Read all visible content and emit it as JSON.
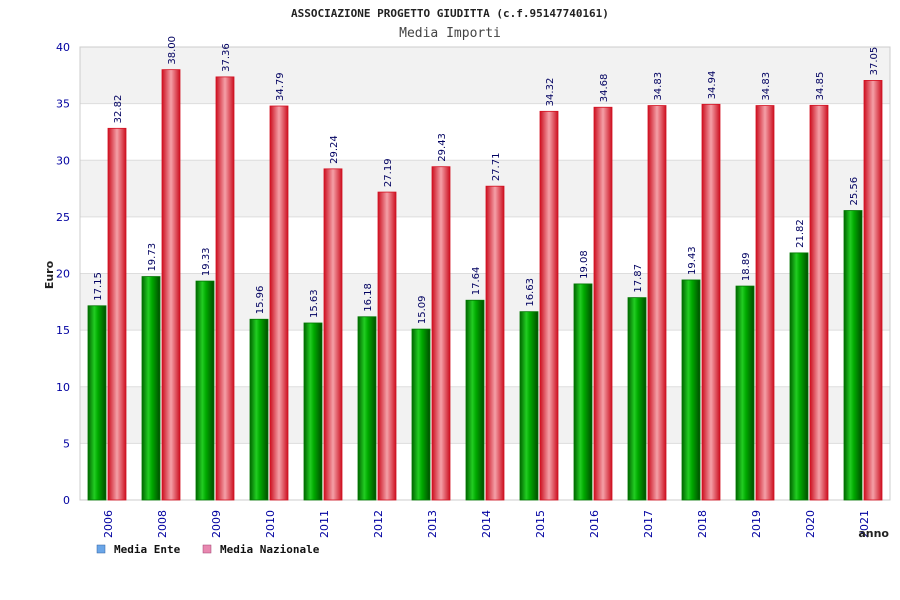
{
  "chart_data": {
    "type": "bar",
    "title": "ASSOCIAZIONE PROGETTO GIUDITTA (c.f.95147740161)",
    "subtitle": "Media Importi",
    "xlabel": "anno",
    "ylabel": "Euro",
    "ylim": [
      0,
      40
    ],
    "yticks": [
      "0",
      "5",
      "10",
      "15",
      "20",
      "25",
      "30",
      "35",
      "40"
    ],
    "grid": true,
    "legend_position": "bottom-left",
    "categories": [
      "2006",
      "2008",
      "2009",
      "2010",
      "2011",
      "2012",
      "2013",
      "2014",
      "2015",
      "2016",
      "2017",
      "2018",
      "2019",
      "2020",
      "2021"
    ],
    "series": [
      {
        "name": "Media Ente",
        "color": "#00b000",
        "legend_color": "#6aa6e8",
        "values": [
          17.15,
          19.73,
          19.33,
          15.96,
          15.63,
          16.18,
          15.09,
          17.64,
          16.63,
          19.08,
          17.87,
          19.43,
          18.89,
          21.82,
          25.56
        ],
        "labels": [
          "17.15",
          "19.73",
          "19.33",
          "15.96",
          "15.63",
          "16.18",
          "15.09",
          "17.64",
          "16.63",
          "19.08",
          "17.87",
          "19.43",
          "18.89",
          "21.82",
          "25.56"
        ]
      },
      {
        "name": "Media Nazionale",
        "color": "#e8202a",
        "legend_color": "#e888b0",
        "values": [
          32.82,
          38.0,
          37.36,
          34.79,
          29.24,
          27.19,
          29.43,
          27.71,
          34.32,
          34.68,
          34.83,
          34.94,
          34.83,
          34.85,
          37.05
        ],
        "labels": [
          "32.82",
          "38.00",
          "37.36",
          "34.79",
          "29.24",
          "27.19",
          "29.43",
          "27.71",
          "34.32",
          "34.68",
          "34.83",
          "34.94",
          "34.83",
          "34.85",
          "37.05"
        ]
      }
    ]
  }
}
